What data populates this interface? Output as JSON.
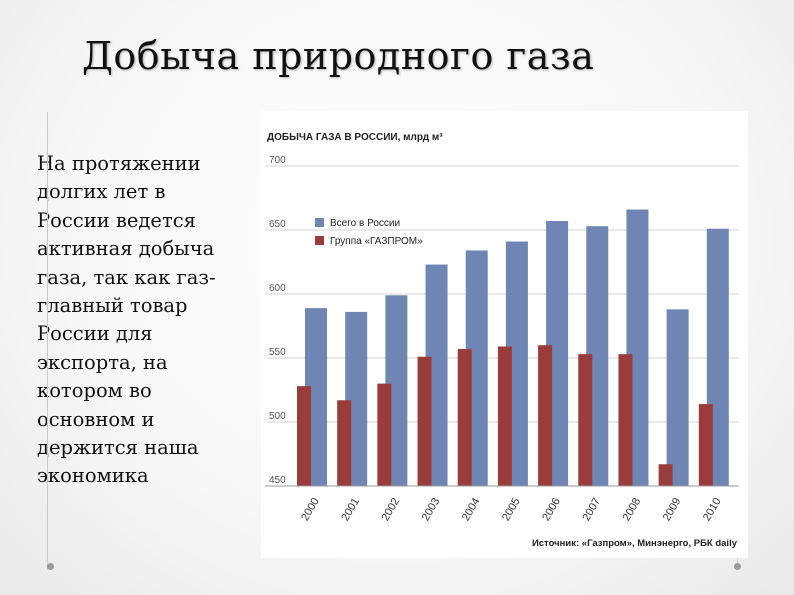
{
  "slide": {
    "title": "Добыча природного газа",
    "body_text": "На протяжении долгих лет в России ведется активная добыча газа, так как газ-главный товар России для экспорта, на котором во основном и держится наша экономика"
  },
  "chart_data": {
    "type": "bar",
    "title": "ДОБЫЧА ГАЗА В РОССИИ, млрд м³",
    "source": "Источник: «Газпром», Минэнерго, РБК daily",
    "categories": [
      "2000",
      "2001",
      "2002",
      "2003",
      "2004",
      "2005",
      "2006",
      "2007",
      "2008",
      "2009",
      "2010"
    ],
    "series": [
      {
        "name": "Всего в России",
        "color": "#6f86b5",
        "values": [
          589,
          586,
          599,
          623,
          634,
          641,
          657,
          653,
          666,
          588,
          651
        ]
      },
      {
        "name": "Группа «ГАЗПРОМ»",
        "color": "#9a3d3a",
        "values": [
          528,
          517,
          530,
          551,
          557,
          559,
          560,
          553,
          553,
          467,
          514
        ]
      }
    ],
    "ylim": [
      450,
      700
    ],
    "yticks": [
      "700",
      "650",
      "600",
      "550",
      "500",
      "450"
    ],
    "grid": true,
    "legend_position": "top-left"
  }
}
